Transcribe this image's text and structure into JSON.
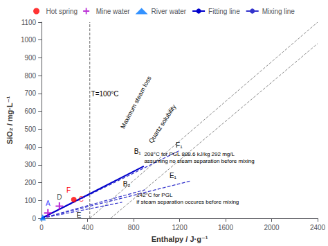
{
  "chart_data": {
    "type": "scatter",
    "xlabel": "Enthalpy / J·g⁻¹",
    "ylabel": "SiO₂ / mg·L⁻¹",
    "xlim": [
      0,
      2400
    ],
    "ylim": [
      0,
      1100
    ],
    "xticks": [
      0,
      400,
      800,
      1200,
      1600,
      2000,
      2400
    ],
    "yticks": [
      0,
      100,
      200,
      300,
      400,
      500,
      600,
      700,
      800,
      900,
      1000,
      1100
    ],
    "grid": false,
    "legend": "upper center",
    "series": [
      {
        "name": "Hot spring",
        "type": "scatter",
        "marker": "circle",
        "color": "#ff0000",
        "x": [
          280
        ],
        "values": [
          105
        ],
        "point_labels": [
          "C"
        ],
        "label_colors": [
          "red"
        ]
      },
      {
        "name": "Mine water",
        "type": "scatter",
        "marker": "plus",
        "color": "#aa00cc",
        "x": [
          155,
          55
        ],
        "values": [
          68,
          30
        ],
        "point_labels": [
          "D",
          "A"
        ],
        "label_colors": [
          "black",
          "blue"
        ]
      },
      {
        "name": "River water",
        "type": "scatter",
        "marker": "triangle",
        "color": "#0077ff",
        "x": [
          10
        ],
        "values": [
          5
        ]
      },
      {
        "name": "Fitting line",
        "type": "line",
        "line_style": "solid",
        "color": "#0000cc",
        "x": [
          0,
          888.6
        ],
        "values": [
          0,
          292
        ]
      },
      {
        "name": "Mixing line",
        "type": "line",
        "line_style": "dashed",
        "color": "#3333cc",
        "segments": [
          {
            "x": [
              0,
              1200
            ],
            "values": [
              0,
              380
            ]
          },
          {
            "x": [
              0,
              1300
            ],
            "values": [
              0,
              210
            ]
          },
          {
            "x": [
              0,
              900
            ],
            "values": [
              0,
              160
            ]
          },
          {
            "x": [
              0,
              700
            ],
            "values": [
              0,
              90
            ]
          }
        ]
      }
    ],
    "reference_lines": [
      {
        "label": "Maximum steam loss",
        "x": [
          419,
          2400
        ],
        "values": [
          0,
          1100
        ],
        "label_x": 820,
        "label_y": 650,
        "color": "#888888",
        "line_style": "dashed"
      },
      {
        "label": "Quartz solubility",
        "x": [
          600,
          2400
        ],
        "values": [
          0,
          980
        ],
        "label_x": 1050,
        "label_y": 530,
        "color": "#888888",
        "line_style": "dashed"
      }
    ],
    "vertical_lines": [
      {
        "x": 419,
        "label": "T=100°C",
        "label_x": 430,
        "label_y": 680,
        "color": "#666666",
        "line_style": "dashed"
      }
    ],
    "annotations": [
      {
        "text": "F",
        "x": 215,
        "y": 122,
        "color": "red"
      },
      {
        "text": "E",
        "x": 305,
        "y": 60,
        "color": "black"
      },
      {
        "text": "B₁",
        "x": 888,
        "y": 345,
        "color": "black"
      },
      {
        "text": "B₂",
        "x": 790,
        "y": 158,
        "color": "black"
      },
      {
        "text": "E₁",
        "x": 1100,
        "y": 205,
        "color": "black"
      },
      {
        "text": "F₁",
        "x": 1155,
        "y": 368,
        "color": "black"
      },
      {
        "text": "208°C for PGL 888.6 kJ/kg 292 mg/L\nassuming no steam separation before mixing",
        "x": 892,
        "y": 300,
        "color": "black"
      },
      {
        "text": "142°C for PGL\nif steam separation occures before mixing",
        "x": 825,
        "y": 148,
        "color": "black"
      }
    ]
  }
}
